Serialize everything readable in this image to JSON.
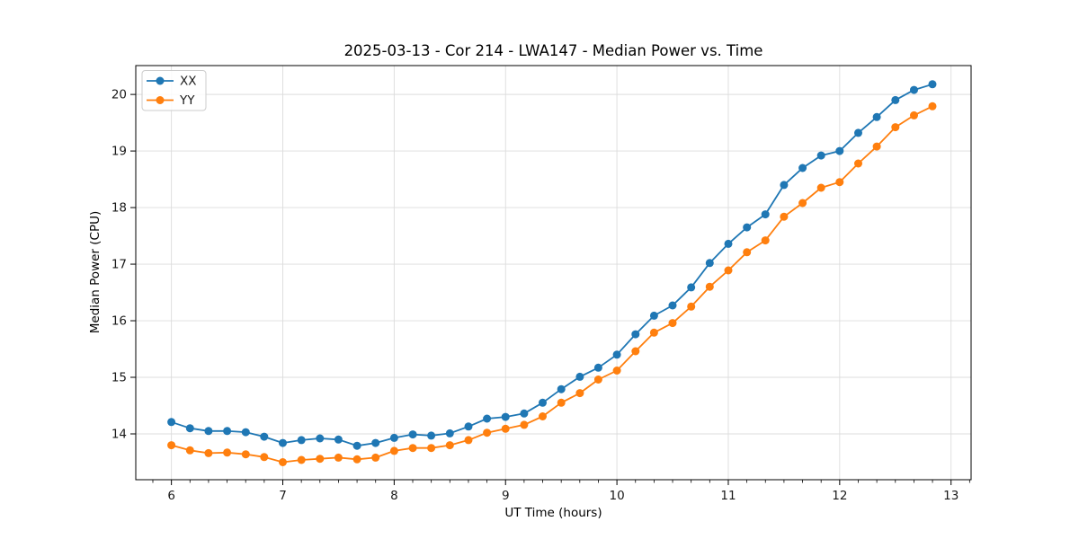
{
  "chart_data": {
    "type": "line",
    "title": "2025-03-13 - Cor 214 - LWA147 - Median Power vs. Time",
    "xlabel": "UT Time (hours)",
    "ylabel": "Median Power (CPU)",
    "xlim": [
      5.68,
      13.18
    ],
    "ylim": [
      13.19,
      20.51
    ],
    "xticks": [
      6,
      7,
      8,
      9,
      10,
      11,
      12,
      13
    ],
    "yticks": [
      14,
      15,
      16,
      17,
      18,
      19,
      20
    ],
    "minor_xtick_step": 0.1666667,
    "grid": true,
    "grid_color": "#dcdcdc",
    "spine_color": "#000000",
    "tick_label_color": "#1a1a1a",
    "legend_position": "upper left",
    "x": [
      6.0,
      6.167,
      6.333,
      6.5,
      6.667,
      6.833,
      7.0,
      7.167,
      7.333,
      7.5,
      7.667,
      7.833,
      8.0,
      8.167,
      8.333,
      8.5,
      8.667,
      8.833,
      9.0,
      9.167,
      9.333,
      9.5,
      9.667,
      9.833,
      10.0,
      10.167,
      10.333,
      10.5,
      10.667,
      10.833,
      11.0,
      11.167,
      11.333,
      11.5,
      11.667,
      11.833,
      12.0,
      12.167,
      12.333,
      12.5,
      12.667,
      12.833
    ],
    "series": [
      {
        "name": "XX",
        "color": "#1f77b4",
        "values": [
          14.21,
          14.1,
          14.05,
          14.05,
          14.03,
          13.95,
          13.84,
          13.89,
          13.92,
          13.9,
          13.79,
          13.84,
          13.93,
          13.99,
          13.97,
          14.01,
          14.13,
          14.27,
          14.3,
          14.36,
          14.55,
          14.79,
          15.01,
          15.17,
          15.4,
          15.76,
          16.09,
          16.27,
          16.59,
          17.02,
          17.36,
          17.65,
          17.88,
          18.4,
          18.7,
          18.92,
          19.0,
          19.32,
          19.6,
          19.9,
          20.08,
          20.18
        ]
      },
      {
        "name": "YY",
        "color": "#ff7f0e",
        "values": [
          13.8,
          13.71,
          13.66,
          13.67,
          13.64,
          13.59,
          13.5,
          13.54,
          13.56,
          13.58,
          13.55,
          13.58,
          13.7,
          13.75,
          13.75,
          13.8,
          13.89,
          14.02,
          14.09,
          14.16,
          14.31,
          14.55,
          14.72,
          14.96,
          15.12,
          15.46,
          15.79,
          15.96,
          16.25,
          16.6,
          16.89,
          17.21,
          17.42,
          17.84,
          18.08,
          18.35,
          18.45,
          18.78,
          19.08,
          19.42,
          19.63,
          19.79
        ]
      }
    ]
  }
}
